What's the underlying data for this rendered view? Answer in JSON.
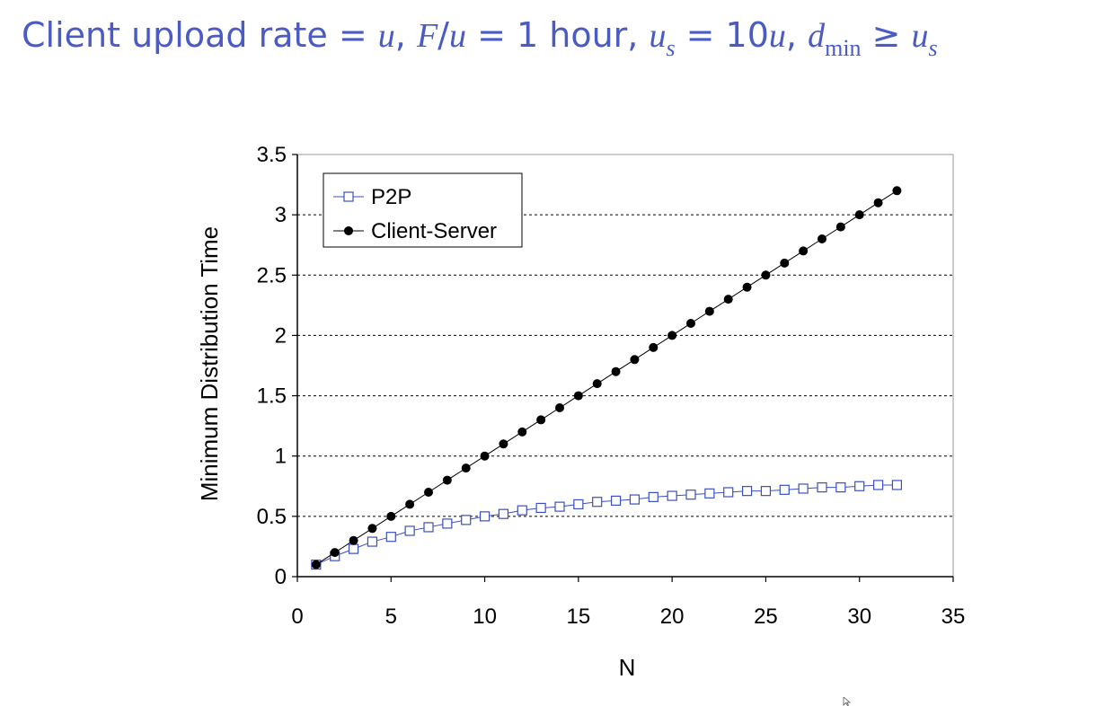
{
  "title": {
    "prefix": "Client upload rate = ",
    "u1": "u",
    "sep1": ",  ",
    "F": "F",
    "slash": "/",
    "u2": "u",
    "eq1h": " = 1 hour,  ",
    "us_u": "u",
    "us_sub": "s",
    "eq10": " = 10",
    "u3": "u",
    "sep2": ",  ",
    "d": "d",
    "d_sub": "min",
    "geq": " ≥ ",
    "us2_u": "u",
    "us2_sub": "s"
  },
  "colors": {
    "title": "#4a5bc4",
    "p2p": "#3a4fc0",
    "client_server": "#000000",
    "grid": "#000000"
  },
  "chart_data": {
    "type": "line",
    "xlabel": "N",
    "ylabel": "Minimum Distribution Time",
    "xlim": [
      0,
      35
    ],
    "ylim": [
      0,
      3.5
    ],
    "xticks": [
      "0",
      "5",
      "10",
      "15",
      "20",
      "25",
      "30",
      "35"
    ],
    "yticks": [
      "0",
      "0.5",
      "1",
      "1.5",
      "2",
      "2.5",
      "3",
      "3.5"
    ],
    "grid": "horizontal dashed",
    "legend_position": "top-left",
    "x": [
      1,
      2,
      3,
      4,
      5,
      6,
      7,
      8,
      9,
      10,
      11,
      12,
      13,
      14,
      15,
      16,
      17,
      18,
      19,
      20,
      21,
      22,
      23,
      24,
      25,
      26,
      27,
      28,
      29,
      30,
      31,
      32
    ],
    "series": [
      {
        "name": "P2P",
        "marker": "open-square",
        "values": [
          0.1,
          0.17,
          0.23,
          0.29,
          0.33,
          0.38,
          0.41,
          0.44,
          0.47,
          0.5,
          0.52,
          0.55,
          0.57,
          0.58,
          0.6,
          0.62,
          0.63,
          0.64,
          0.66,
          0.67,
          0.68,
          0.69,
          0.7,
          0.71,
          0.71,
          0.72,
          0.73,
          0.74,
          0.74,
          0.75,
          0.76,
          0.76
        ]
      },
      {
        "name": "Client-Server",
        "marker": "filled-circle",
        "values": [
          0.1,
          0.2,
          0.3,
          0.4,
          0.5,
          0.6,
          0.7,
          0.8,
          0.9,
          1.0,
          1.1,
          1.2,
          1.3,
          1.4,
          1.5,
          1.6,
          1.7,
          1.8,
          1.9,
          2.0,
          2.1,
          2.2,
          2.3,
          2.4,
          2.5,
          2.6,
          2.7,
          2.8,
          2.9,
          3.0,
          3.1,
          3.2
        ]
      }
    ]
  }
}
